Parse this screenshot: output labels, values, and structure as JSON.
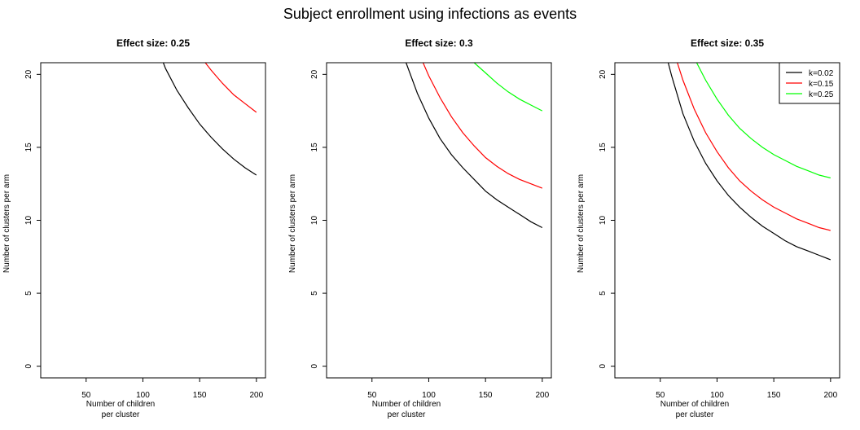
{
  "figure": {
    "title": "Subject enrollment using infections as events"
  },
  "chart_data": [
    {
      "type": "line",
      "title": "Effect size: 0.25",
      "xlabel": [
        "Number of children",
        "per cluster"
      ],
      "ylabel": "Number of clusters per arm",
      "xlim": [
        10,
        208
      ],
      "ylim": [
        -0.8,
        20.8
      ],
      "xticks": [
        50,
        100,
        150,
        200
      ],
      "yticks": [
        0,
        5,
        10,
        15,
        20
      ],
      "legend": false,
      "series": [
        {
          "name": "k=0.02",
          "color": "#000000",
          "x": [
            118,
            120,
            130,
            140,
            150,
            160,
            170,
            180,
            190,
            200
          ],
          "y": [
            20.8,
            20.4,
            18.9,
            17.7,
            16.6,
            15.7,
            14.9,
            14.2,
            13.6,
            13.1
          ]
        },
        {
          "name": "k=0.15",
          "color": "#ff0000",
          "x": [
            155,
            160,
            170,
            180,
            190,
            200
          ],
          "y": [
            20.8,
            20.3,
            19.4,
            18.6,
            18.0,
            17.4
          ]
        }
      ]
    },
    {
      "type": "line",
      "title": "Effect size: 0.3",
      "xlabel": [
        "Number of children",
        "per cluster"
      ],
      "ylabel": "Number of clusters per arm",
      "xlim": [
        10,
        208
      ],
      "ylim": [
        -0.8,
        20.8
      ],
      "xticks": [
        50,
        100,
        150,
        200
      ],
      "yticks": [
        0,
        5,
        10,
        15,
        20
      ],
      "legend": false,
      "series": [
        {
          "name": "k=0.02",
          "color": "#000000",
          "x": [
            80,
            90,
            100,
            110,
            120,
            130,
            140,
            150,
            160,
            170,
            180,
            190,
            200
          ],
          "y": [
            20.8,
            18.7,
            17.0,
            15.6,
            14.5,
            13.6,
            12.8,
            12.0,
            11.4,
            10.9,
            10.4,
            9.9,
            9.5
          ]
        },
        {
          "name": "k=0.15",
          "color": "#ff0000",
          "x": [
            95,
            100,
            110,
            120,
            130,
            140,
            150,
            160,
            170,
            180,
            190,
            200
          ],
          "y": [
            20.8,
            19.9,
            18.4,
            17.1,
            16.0,
            15.1,
            14.3,
            13.7,
            13.2,
            12.8,
            12.5,
            12.2
          ]
        },
        {
          "name": "k=0.25",
          "color": "#00ff00",
          "x": [
            140,
            150,
            160,
            170,
            180,
            190,
            200
          ],
          "y": [
            20.8,
            20.1,
            19.4,
            18.8,
            18.3,
            17.9,
            17.5
          ]
        }
      ]
    },
    {
      "type": "line",
      "title": "Effect size: 0.35",
      "xlabel": [
        "Number of children",
        "per cluster"
      ],
      "ylabel": "Number of clusters per arm",
      "xlim": [
        10,
        208
      ],
      "ylim": [
        -0.8,
        20.8
      ],
      "xticks": [
        50,
        100,
        150,
        200
      ],
      "yticks": [
        0,
        5,
        10,
        15,
        20
      ],
      "legend": true,
      "legend_position": "top-right",
      "series": [
        {
          "name": "k=0.02",
          "color": "#000000",
          "x": [
            57,
            60,
            70,
            80,
            90,
            100,
            110,
            120,
            130,
            140,
            150,
            160,
            170,
            180,
            190,
            200
          ],
          "y": [
            20.8,
            19.9,
            17.3,
            15.4,
            13.9,
            12.7,
            11.7,
            10.9,
            10.2,
            9.6,
            9.1,
            8.6,
            8.2,
            7.9,
            7.6,
            7.3
          ]
        },
        {
          "name": "k=0.15",
          "color": "#ff0000",
          "x": [
            65,
            70,
            80,
            90,
            100,
            110,
            120,
            130,
            140,
            150,
            160,
            170,
            180,
            190,
            200
          ],
          "y": [
            20.8,
            19.6,
            17.6,
            16.0,
            14.7,
            13.6,
            12.7,
            12.0,
            11.4,
            10.9,
            10.5,
            10.1,
            9.8,
            9.5,
            9.3
          ]
        },
        {
          "name": "k=0.25",
          "color": "#00ff00",
          "x": [
            82,
            90,
            100,
            110,
            120,
            130,
            140,
            150,
            160,
            170,
            180,
            190,
            200
          ],
          "y": [
            20.8,
            19.6,
            18.3,
            17.2,
            16.3,
            15.6,
            15.0,
            14.5,
            14.1,
            13.7,
            13.4,
            13.1,
            12.9
          ]
        }
      ]
    }
  ]
}
